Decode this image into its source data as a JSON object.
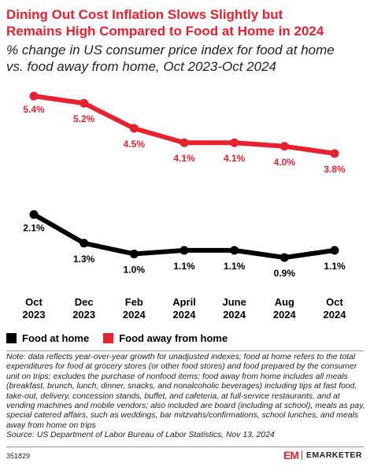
{
  "header": {
    "title": "Dining Out Cost Inflation Slows Slightly but\nRemains High Compared to Food at Home in 2024",
    "subtitle": "% change in US consumer price index for food at home\nvs. food away from home, Oct 2023-Oct 2024"
  },
  "chart_data": {
    "type": "line",
    "categories": [
      "Oct\n2023",
      "Dec\n2023",
      "Feb\n2024",
      "April\n2024",
      "June\n2024",
      "Aug\n2024",
      "Oct\n2024"
    ],
    "series": [
      {
        "name": "Food at home",
        "color": "#000000",
        "values": [
          2.1,
          1.3,
          1.0,
          1.1,
          1.1,
          0.9,
          1.1
        ],
        "labels": [
          "2.1%",
          "1.3%",
          "1.0%",
          "1.1%",
          "1.1%",
          "0.9%",
          "1.1%"
        ]
      },
      {
        "name": "Food away from home",
        "color": "#e8212e",
        "values": [
          5.4,
          5.2,
          4.5,
          4.1,
          4.1,
          4.0,
          3.8
        ],
        "labels": [
          "5.4%",
          "5.2%",
          "4.5%",
          "4.1%",
          "4.1%",
          "4.0%",
          "3.8%"
        ]
      }
    ],
    "title": "",
    "xlabel": "",
    "ylabel": "",
    "grid": false,
    "legend": "bottom-left"
  },
  "legend": {
    "items": [
      {
        "label": "Food at home",
        "color": "#000000"
      },
      {
        "label": "Food away from home",
        "color": "#e8212e"
      }
    ]
  },
  "footer": {
    "note": "Note: data reflects year-over-year growth for unadjusted indexes; food at home refers to the total expenditures for food at grocery stores (or other food stores) and food prepared by the consumer unit on trips; excludes the purchase of nonfood items; food away from home includes all meals (breakfast, brunch, lunch, dinner, snacks, and nonalcoholic beverages) including tips at fast food, take-out, delivery, concession stands, buffet, and cafeteria, at full-service restaurants, and at vending machines and mobile vendors; also included are board (including at school), meals as pay, special catered affairs, such as weddings, bar mitzvahs/confirmations, school lunches, and meals away from home on trips",
    "source": "Source: US Department of Labor Bureau of Labor Statistics, Nov 13, 2024",
    "chart_id": "351829",
    "brand_logo": "EM",
    "brand_name": "EMARKETER"
  }
}
